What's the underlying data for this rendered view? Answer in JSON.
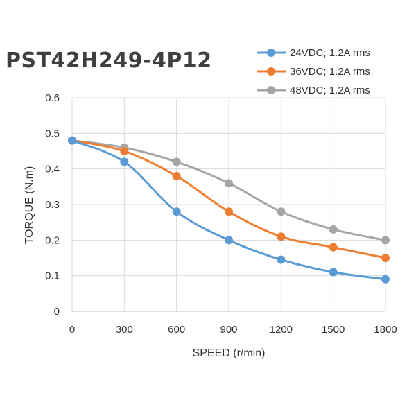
{
  "chart_data": {
    "type": "line",
    "title": "PST42H249-4P12",
    "xlabel": "SPEED (r/min)",
    "ylabel": "TORQUE (N.m)",
    "x": [
      0,
      300,
      600,
      900,
      1200,
      1500,
      1800
    ],
    "xlim": [
      0,
      1800
    ],
    "ylim": [
      0,
      0.6
    ],
    "xticks": [
      "0",
      "300",
      "600",
      "900",
      "1200",
      "1500",
      "1800"
    ],
    "yticks": [
      "0",
      "0.1",
      "0.2",
      "0.3",
      "0.4",
      "0.5",
      "0.6"
    ],
    "grid": true,
    "legend_position": "top-right",
    "series": [
      {
        "name": "24VDC; 1.2A rms",
        "color": "#5b9bd5",
        "values": [
          0.48,
          0.42,
          0.28,
          0.2,
          0.145,
          0.11,
          0.09
        ]
      },
      {
        "name": "36VDC; 1.2A rms",
        "color": "#ed7d31",
        "values": [
          0.48,
          0.45,
          0.38,
          0.28,
          0.21,
          0.18,
          0.15
        ]
      },
      {
        "name": "48VDC; 1.2A rms",
        "color": "#a5a5a5",
        "values": [
          0.48,
          0.46,
          0.42,
          0.36,
          0.28,
          0.23,
          0.2
        ]
      }
    ]
  }
}
